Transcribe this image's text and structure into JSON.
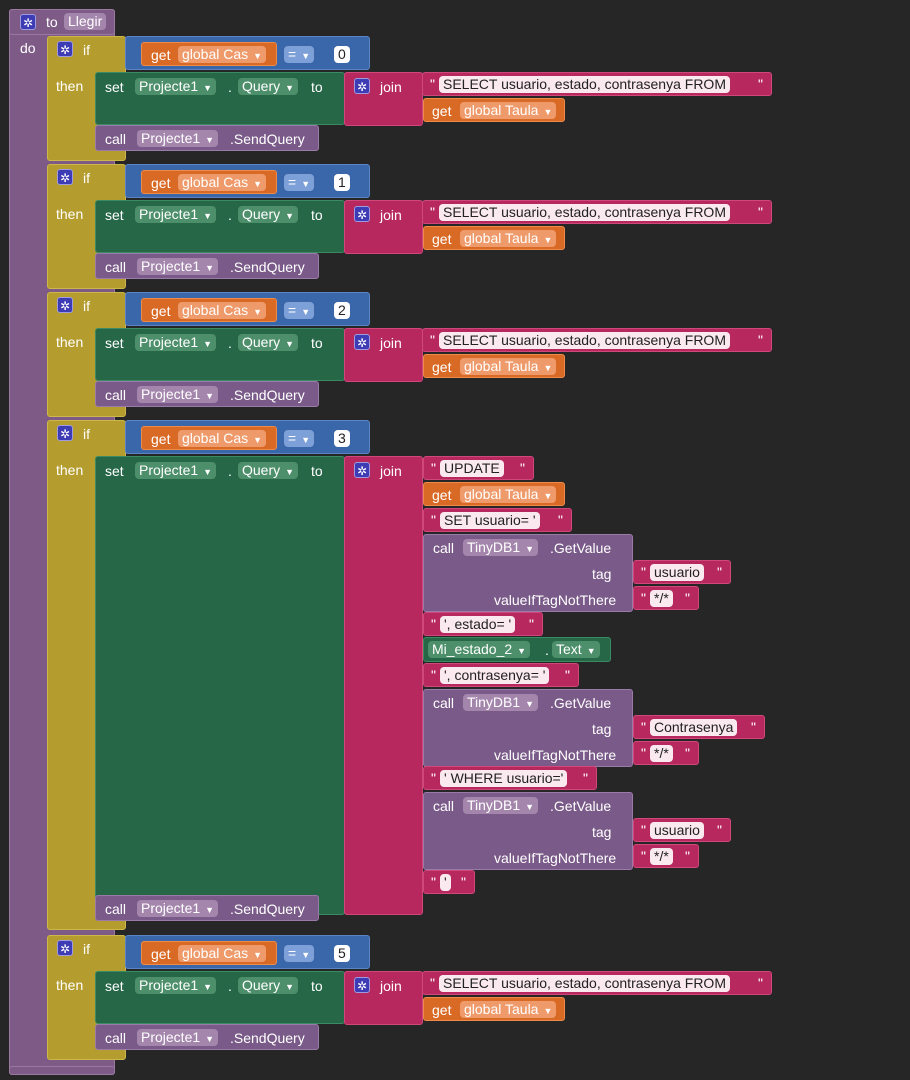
{
  "procedure": {
    "to": "to",
    "name": "Llegir",
    "do": "do"
  },
  "kw": {
    "if": "if",
    "then": "then",
    "set": "set",
    "call": "call",
    "to": "to",
    "join": "join",
    "get": "get",
    "dot": ".",
    "eq": "=",
    "quote": "\"",
    "tag": "tag",
    "vnt": "valueIfTagNotThere"
  },
  "fields": {
    "global_cas": "global Cas",
    "global_taula": "global Taula",
    "projecte": "Projecte1",
    "query": "Query",
    "send": ".SendQuery",
    "tinydb": "TinyDB1",
    "getvalue": ".GetValue",
    "estado2": "Mi_estado_2",
    "text": "Text"
  },
  "conds": [
    "0",
    "1",
    "2",
    "3",
    "5"
  ],
  "strings": {
    "select": "SELECT usuario, estado, contrasenya FROM",
    "update": "UPDATE",
    "setuser": "SET usuario= '",
    "usuario": "usuario",
    "star": "*/*",
    "estado": "', estado= '",
    "contra": "', contrasenya= '",
    "contrasenya": "Contrasenya",
    "where": "' WHERE usuario='",
    "close": "'"
  }
}
